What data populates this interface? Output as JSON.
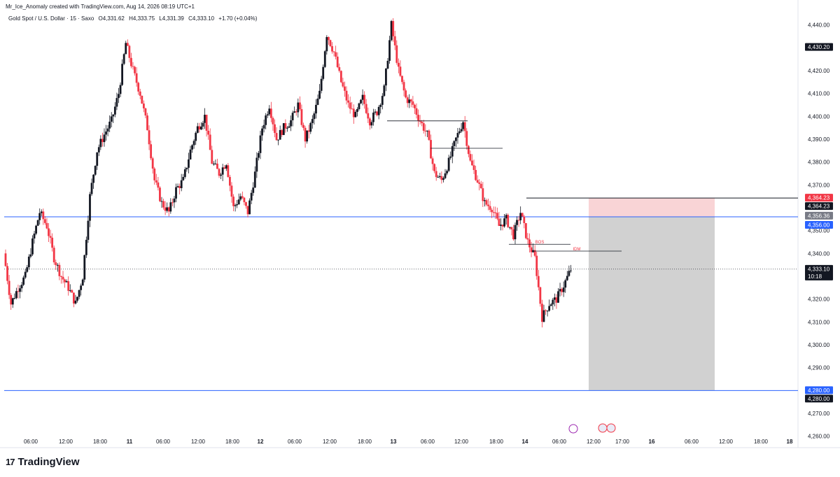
{
  "header": {
    "author_line": "Mr_Ice_Anomaly created with TradingView.com, Aug 14, 2026 08:19 UTC+1",
    "symbol": "Gold Spot / U.S. Dollar · 15 · Saxo",
    "open": "O4,331.62",
    "high": "H4,333.75",
    "low": "L4,331.39",
    "close": "C4,333.10",
    "change": "+1.70 (+0.04%)"
  },
  "footer": {
    "brand": "TradingView",
    "mark": "17"
  },
  "colors": {
    "up": "#131722",
    "down": "#f23645",
    "blue_line": "#2962ff",
    "stop_zone": "#f9d4d6",
    "target_zone": "#d1d1d1"
  },
  "chart_data": {
    "type": "candlestick",
    "y_axis": {
      "ticks": [
        "4,440.00",
        "4,420.00",
        "4,410.00",
        "4,400.00",
        "4,390.00",
        "4,380.00",
        "4,370.00",
        "4,350.00",
        "4,340.00",
        "4,320.00",
        "4,310.00",
        "4,300.00",
        "4,290.00",
        "4,270.00",
        "4,260.00"
      ],
      "range": [
        4255,
        4446
      ]
    },
    "x_axis": {
      "ticks": [
        "06:00",
        "12:00",
        "18:00",
        "11",
        "06:00",
        "12:00",
        "18:00",
        "12",
        "06:00",
        "12:00",
        "18:00",
        "13",
        "06:00",
        "12:00",
        "18:00",
        "14",
        "06:00",
        "12:00",
        "17:00",
        "16",
        "06:00",
        "12:00",
        "18:00",
        "18"
      ]
    },
    "price_labels": [
      {
        "value": 4430.2,
        "text": "4,430.20",
        "color": "#131722"
      },
      {
        "value": 4364.23,
        "text": "4,364.23",
        "color": "#f23645"
      },
      {
        "value": 4364.23,
        "text": "4,364.23",
        "color": "#131722",
        "offset": 1
      },
      {
        "value": 4356.36,
        "text": "4,356.36",
        "color": "#787b86"
      },
      {
        "value": 4356.0,
        "text": "4,356.00",
        "color": "#2962ff",
        "offset": 1
      },
      {
        "value": 4333.1,
        "text": "4,333.10",
        "color": "#131722",
        "sub": "10:18"
      },
      {
        "value": 4280.0,
        "text": "4,280.00",
        "color": "#2962ff"
      },
      {
        "value": 4280.0,
        "text": "4,280.00",
        "color": "#131722",
        "offset": 1
      }
    ],
    "horizontal_lines": [
      {
        "value": 4356.0,
        "color": "#2962ff"
      },
      {
        "value": 4280.0,
        "color": "#2962ff"
      }
    ],
    "position": {
      "entry": 4356.0,
      "stop": 4364.23,
      "target": 4280.0
    },
    "annotations": [
      {
        "text": "BOS",
        "value": 4344.0
      },
      {
        "text": "IDM",
        "value": 4341.0
      }
    ],
    "current_price": 4333.1,
    "candles_anchor": [
      4340,
      4318,
      4325,
      4330,
      4345,
      4358,
      4352,
      4338,
      4330,
      4325,
      4318,
      4330,
      4365,
      4385,
      4392,
      4398,
      4410,
      4432,
      4420,
      4410,
      4395,
      4372,
      4362,
      4358,
      4368,
      4372,
      4385,
      4395,
      4400,
      4380,
      4375,
      4380,
      4360,
      4365,
      4358,
      4375,
      4395,
      4405,
      4390,
      4395,
      4398,
      4405,
      4390,
      4398,
      4410,
      4436,
      4428,
      4415,
      4405,
      4400,
      4408,
      4398,
      4402,
      4412,
      4440,
      4420,
      4408,
      4405,
      4398,
      4392,
      4375,
      4372,
      4380,
      4390,
      4398,
      4380,
      4372,
      4362,
      4360,
      4352,
      4355,
      4348,
      4358,
      4345,
      4338,
      4312,
      4318,
      4320,
      4326,
      4333
    ]
  }
}
